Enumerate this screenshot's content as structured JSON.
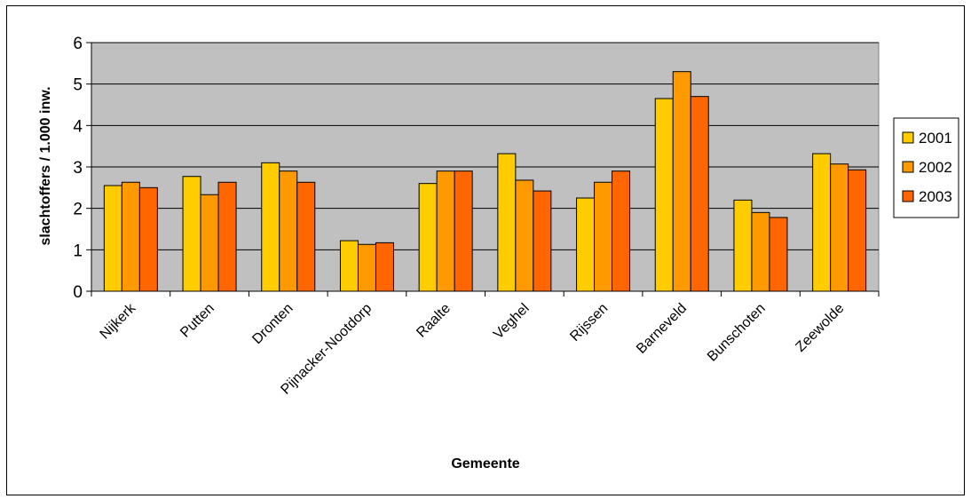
{
  "chart_data": {
    "type": "bar",
    "categories": [
      "Nijkerk",
      "Putten",
      "Dronten",
      "Pijnacker-Nootdorp",
      "Raalte",
      "Veghel",
      "Rijssen",
      "Barneveld",
      "Bunschoten",
      "Zeewolde"
    ],
    "series": [
      {
        "name": "2001",
        "color": "#FFCC00",
        "values": [
          2.55,
          2.77,
          3.1,
          1.22,
          2.6,
          3.32,
          2.25,
          4.65,
          2.2,
          3.32
        ]
      },
      {
        "name": "2002",
        "color": "#FF9900",
        "values": [
          2.63,
          2.33,
          2.9,
          1.13,
          2.9,
          2.68,
          2.63,
          5.3,
          1.9,
          3.07
        ]
      },
      {
        "name": "2003",
        "color": "#FF6600",
        "values": [
          2.5,
          2.63,
          2.63,
          1.17,
          2.9,
          2.42,
          2.9,
          4.7,
          1.78,
          2.93
        ]
      }
    ],
    "title": "",
    "xlabel": "Gemeente",
    "ylabel": "slachtoffers / 1.000 inw.",
    "ylim": [
      0,
      6
    ],
    "yticks": [
      0,
      1,
      2,
      3,
      4,
      5,
      6
    ],
    "grid": true,
    "plot_background": "#C0C0C0",
    "legend_position": "right"
  }
}
